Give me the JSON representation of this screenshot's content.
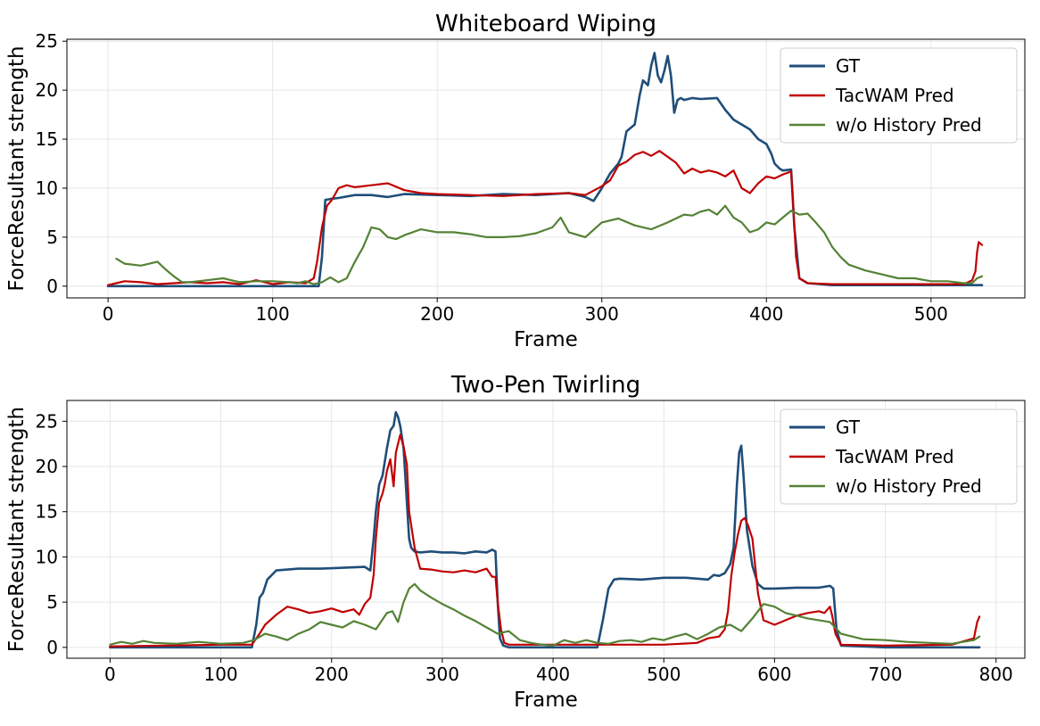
{
  "chart_data": [
    {
      "type": "line",
      "title": "Whiteboard Wiping",
      "xlabel": "Frame",
      "ylabel": "ForceResultant strength",
      "xlim": [
        -25,
        557
      ],
      "ylim": [
        -1.2,
        25.2
      ],
      "xticks": [
        0,
        100,
        200,
        300,
        400,
        500
      ],
      "yticks": [
        0,
        5,
        10,
        15,
        20,
        25
      ],
      "grid": true,
      "legend_position": "top-right",
      "series": [
        {
          "name": "GT",
          "color": "#1f4e79",
          "x": [
            0,
            60,
            120,
            128,
            130,
            132,
            135,
            140,
            150,
            160,
            170,
            180,
            200,
            220,
            240,
            260,
            280,
            290,
            295,
            300,
            305,
            310,
            312,
            315,
            320,
            323,
            325,
            328,
            330,
            332,
            334,
            336,
            338,
            340,
            342,
            344,
            346,
            348,
            350,
            355,
            360,
            370,
            375,
            380,
            385,
            390,
            395,
            400,
            403,
            405,
            408,
            410,
            415,
            417,
            420,
            425,
            440,
            460,
            480,
            500,
            520,
            531
          ],
          "y": [
            0,
            0,
            0,
            0,
            3,
            8.8,
            8.9,
            9,
            9.3,
            9.3,
            9.1,
            9.4,
            9.3,
            9.2,
            9.4,
            9.3,
            9.5,
            9.1,
            8.7,
            10,
            11.5,
            12.5,
            13.2,
            15.8,
            16.5,
            19.5,
            21,
            20.5,
            22.5,
            23.8,
            21.5,
            20.8,
            22,
            23.5,
            21.5,
            17.7,
            19,
            19.2,
            19,
            19.2,
            19.1,
            19.2,
            18,
            17,
            16.5,
            16,
            15,
            14.5,
            13.5,
            12.5,
            12,
            11.8,
            11.9,
            6,
            0.8,
            0.3,
            0.1,
            0.1,
            0.1,
            0.1,
            0.1,
            0.1
          ]
        },
        {
          "name": "TacWAM Pred",
          "color": "#c00000",
          "x": [
            0,
            5,
            10,
            20,
            30,
            40,
            50,
            60,
            70,
            80,
            90,
            100,
            110,
            120,
            125,
            127,
            130,
            133,
            136,
            140,
            145,
            150,
            160,
            170,
            180,
            190,
            200,
            220,
            240,
            260,
            280,
            290,
            300,
            305,
            310,
            315,
            320,
            325,
            330,
            335,
            340,
            345,
            350,
            355,
            360,
            365,
            370,
            375,
            380,
            385,
            390,
            395,
            400,
            405,
            410,
            415,
            416,
            418,
            420,
            425,
            440,
            460,
            480,
            500,
            520,
            525,
            527,
            528,
            529,
            531
          ],
          "y": [
            0.1,
            0.3,
            0.5,
            0.4,
            0.2,
            0.3,
            0.4,
            0.3,
            0.4,
            0.2,
            0.6,
            0.2,
            0.4,
            0.3,
            0.8,
            2.5,
            6,
            8.2,
            8.8,
            10,
            10.3,
            10.1,
            10.3,
            10.5,
            9.8,
            9.5,
            9.4,
            9.3,
            9.2,
            9.4,
            9.5,
            9.3,
            10.2,
            10.8,
            12.3,
            12.7,
            13.4,
            13.7,
            13.3,
            13.8,
            13.2,
            12.6,
            11.5,
            12,
            11.6,
            11.8,
            11.6,
            11.2,
            11.8,
            10,
            9.5,
            10.5,
            11.2,
            11,
            11.4,
            11.7,
            9,
            3,
            0.8,
            0.3,
            0.2,
            0.2,
            0.2,
            0.2,
            0.2,
            0.6,
            1.5,
            3.5,
            4.5,
            4.2
          ]
        },
        {
          "name": "w/o History Pred",
          "color": "#548235",
          "x": [
            5,
            10,
            20,
            30,
            35,
            40,
            45,
            50,
            60,
            70,
            80,
            90,
            100,
            110,
            115,
            120,
            125,
            130,
            135,
            140,
            145,
            150,
            155,
            160,
            165,
            170,
            175,
            180,
            190,
            200,
            210,
            220,
            230,
            240,
            250,
            260,
            270,
            275,
            280,
            290,
            300,
            310,
            320,
            330,
            340,
            350,
            355,
            360,
            365,
            370,
            375,
            380,
            385,
            390,
            395,
            400,
            405,
            410,
            415,
            420,
            425,
            430,
            435,
            440,
            445,
            450,
            460,
            470,
            480,
            490,
            500,
            510,
            520,
            525,
            528,
            531
          ],
          "y": [
            2.8,
            2.3,
            2.1,
            2.5,
            1.7,
            1,
            0.4,
            0.4,
            0.6,
            0.8,
            0.4,
            0.5,
            0.5,
            0.4,
            0.3,
            0.5,
            0.2,
            0.4,
            0.9,
            0.4,
            0.8,
            2.5,
            4,
            6,
            5.8,
            5,
            4.8,
            5.2,
            5.8,
            5.5,
            5.5,
            5.3,
            5,
            5,
            5.1,
            5.4,
            6,
            7,
            5.5,
            5,
            6.5,
            6.9,
            6.2,
            5.8,
            6.5,
            7.3,
            7.2,
            7.6,
            7.8,
            7.3,
            8.2,
            7,
            6.5,
            5.5,
            5.8,
            6.5,
            6.3,
            7,
            7.7,
            7.3,
            7.4,
            6.5,
            5.5,
            4,
            3,
            2.2,
            1.6,
            1.2,
            0.8,
            0.8,
            0.5,
            0.5,
            0.3,
            0.3,
            0.8,
            1
          ]
        }
      ]
    },
    {
      "type": "line",
      "title": "Two-Pen Twirling",
      "xlabel": "Frame",
      "ylabel": "ForceResultant strength",
      "xlim": [
        -39,
        826
      ],
      "ylim": [
        -1.2,
        27.3
      ],
      "xticks": [
        0,
        100,
        200,
        300,
        400,
        500,
        600,
        700,
        800
      ],
      "yticks": [
        0,
        5,
        10,
        15,
        20,
        25
      ],
      "grid": true,
      "legend_position": "top-right",
      "series": [
        {
          "name": "GT",
          "color": "#1f4e79",
          "x": [
            0,
            50,
            100,
            128,
            132,
            135,
            138,
            142,
            150,
            170,
            190,
            210,
            230,
            235,
            238,
            240,
            243,
            246,
            250,
            253,
            256,
            258,
            260,
            262,
            265,
            268,
            270,
            272,
            275,
            280,
            290,
            300,
            310,
            320,
            330,
            340,
            345,
            348,
            350,
            352,
            355,
            360,
            400,
            440,
            445,
            450,
            455,
            460,
            480,
            500,
            520,
            540,
            545,
            550,
            555,
            560,
            563,
            566,
            568,
            570,
            572,
            575,
            580,
            585,
            590,
            600,
            620,
            640,
            650,
            653,
            656,
            660,
            700,
            760,
            785
          ],
          "y": [
            0,
            0,
            0,
            0,
            2.5,
            5.5,
            6,
            7.5,
            8.5,
            8.7,
            8.7,
            8.8,
            8.9,
            8.5,
            12,
            15,
            18,
            19,
            22,
            24,
            24.5,
            26,
            25.5,
            24.5,
            22,
            16,
            12,
            11,
            10.6,
            10.5,
            10.6,
            10.5,
            10.5,
            10.4,
            10.6,
            10.5,
            10.8,
            10.6,
            5,
            1,
            0.2,
            0,
            0,
            0,
            3,
            6.5,
            7.5,
            7.6,
            7.5,
            7.7,
            7.7,
            7.5,
            8,
            7.9,
            8.2,
            9.2,
            11,
            18,
            21.5,
            22.3,
            19,
            13,
            9,
            7,
            6.5,
            6.5,
            6.6,
            6.6,
            6.8,
            6.5,
            2,
            0.2,
            0,
            0,
            0
          ]
        },
        {
          "name": "TacWAM Pred",
          "color": "#c00000",
          "x": [
            0,
            50,
            100,
            128,
            135,
            140,
            150,
            160,
            170,
            180,
            190,
            200,
            210,
            220,
            225,
            230,
            235,
            238,
            240,
            243,
            246,
            248,
            250,
            253,
            256,
            258,
            260,
            262,
            265,
            268,
            270,
            275,
            280,
            290,
            300,
            310,
            320,
            330,
            340,
            345,
            348,
            350,
            353,
            356,
            360,
            400,
            450,
            500,
            530,
            540,
            550,
            555,
            558,
            561,
            564,
            567,
            570,
            573,
            576,
            580,
            585,
            590,
            600,
            610,
            620,
            630,
            640,
            645,
            650,
            652,
            655,
            660,
            700,
            760,
            780,
            783,
            785
          ],
          "y": [
            0.1,
            0.2,
            0.3,
            0.3,
            1.5,
            2.5,
            3.6,
            4.5,
            4.2,
            3.8,
            4,
            4.3,
            3.9,
            4.2,
            3.6,
            4.8,
            5.5,
            8,
            12,
            16,
            17,
            18,
            19.5,
            20.8,
            17.8,
            21.5,
            22.5,
            23.5,
            22.2,
            20.2,
            15,
            11,
            8.7,
            8.6,
            8.4,
            8.3,
            8.5,
            8.3,
            8.7,
            7.8,
            7.8,
            5,
            2,
            0.5,
            0.3,
            0.3,
            0.3,
            0.3,
            0.5,
            1,
            1.2,
            2,
            4,
            8,
            10.5,
            12.5,
            14,
            14.3,
            13.5,
            12,
            6,
            3,
            2.5,
            3,
            3.5,
            3.8,
            4,
            3.8,
            4.5,
            3.5,
            1.5,
            0.3,
            0.2,
            0.3,
            1,
            2.8,
            3.4
          ]
        },
        {
          "name": "w/o History Pred",
          "color": "#548235",
          "x": [
            0,
            10,
            20,
            30,
            40,
            60,
            80,
            100,
            120,
            130,
            140,
            150,
            160,
            170,
            180,
            190,
            200,
            210,
            220,
            230,
            240,
            250,
            255,
            260,
            265,
            270,
            275,
            280,
            290,
            300,
            310,
            320,
            330,
            340,
            350,
            360,
            370,
            380,
            390,
            400,
            410,
            420,
            430,
            440,
            450,
            460,
            470,
            480,
            490,
            500,
            510,
            520,
            530,
            540,
            550,
            560,
            570,
            580,
            590,
            600,
            610,
            620,
            630,
            640,
            650,
            660,
            680,
            700,
            720,
            740,
            760,
            770,
            780,
            785
          ],
          "y": [
            0.3,
            0.6,
            0.4,
            0.7,
            0.5,
            0.4,
            0.6,
            0.4,
            0.5,
            0.8,
            1.5,
            1.2,
            0.8,
            1.5,
            2,
            2.8,
            2.5,
            2.2,
            2.9,
            2.5,
            2,
            3.8,
            4,
            2.8,
            5,
            6.5,
            7,
            6.3,
            5.5,
            4.8,
            4.2,
            3.5,
            2.9,
            2.2,
            1.5,
            1.8,
            0.8,
            0.5,
            0.3,
            0.2,
            0.8,
            0.5,
            0.8,
            0.5,
            0.4,
            0.7,
            0.8,
            0.6,
            1,
            0.8,
            1.2,
            1.5,
            0.9,
            1.5,
            2.2,
            2.5,
            1.8,
            3.2,
            4.8,
            4.5,
            3.8,
            3.5,
            3.2,
            3,
            2.8,
            1.5,
            0.9,
            0.8,
            0.6,
            0.5,
            0.4,
            0.6,
            0.8,
            1.2
          ]
        }
      ]
    }
  ]
}
